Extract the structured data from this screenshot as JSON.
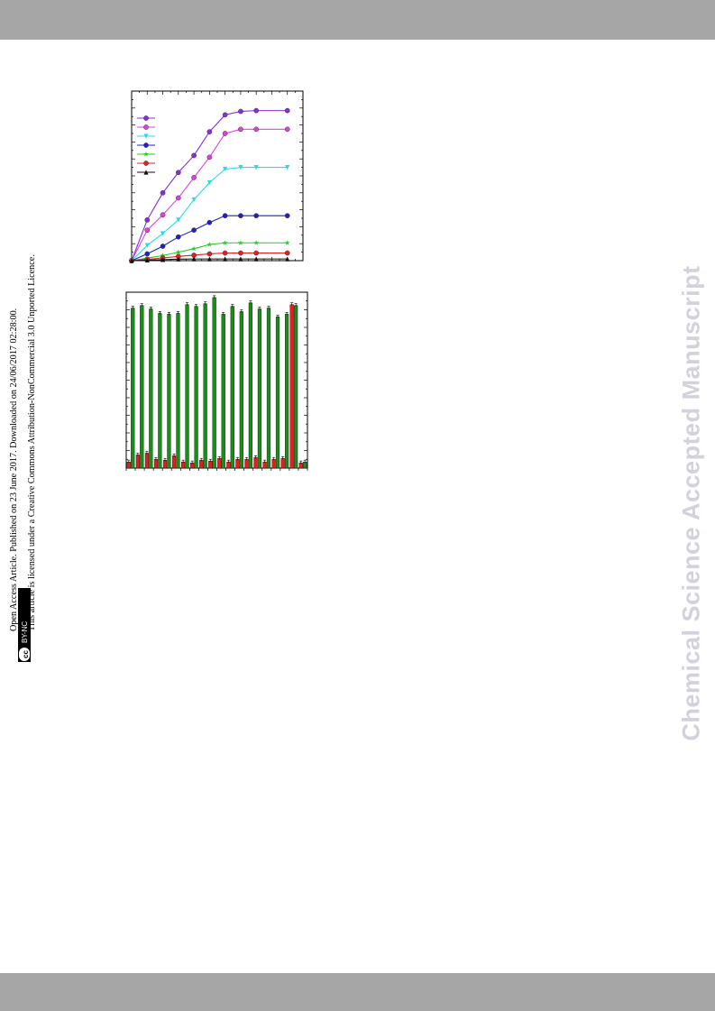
{
  "watermark": "Chemical Science Accepted Manuscript",
  "article_info": {
    "line1": "Open Access Article. Published on 23 June 2017. Downloaded on 24/06/2017 02:28:00.",
    "line2": "This article is licensed under a Creative Commons Attribution-NonCommercial 3.0 Unported Licence.",
    "badge_symbol": "cc",
    "badge_label": "BY-NC"
  },
  "chart_data": [
    {
      "type": "line",
      "x": [
        0,
        1,
        2,
        3,
        4,
        5,
        6,
        7,
        8,
        10
      ],
      "ylim": [
        0,
        100
      ],
      "grid": false,
      "legend": "top-left",
      "series": [
        {
          "color": "#8a2be2",
          "marker": "circle",
          "values": [
            0,
            24,
            40,
            52,
            62,
            76,
            86,
            88,
            88.5,
            88.5
          ]
        },
        {
          "color": "#e040e0",
          "marker": "circle",
          "values": [
            0,
            18,
            27,
            37,
            49,
            61,
            75,
            77.5,
            77.5,
            77.5
          ]
        },
        {
          "color": "#22dde8",
          "marker": "triangle-down",
          "values": [
            0,
            9,
            16,
            24,
            36,
            46,
            54,
            55,
            55,
            55
          ]
        },
        {
          "color": "#1f1fcf",
          "marker": "circle",
          "values": [
            0,
            4,
            8.5,
            14,
            18,
            22.5,
            26.5,
            26.5,
            26.5,
            26.5
          ]
        },
        {
          "color": "#22cc22",
          "marker": "star",
          "values": [
            0,
            1.5,
            3,
            5,
            7,
            9.5,
            10.5,
            10.5,
            10.5,
            10.5
          ]
        },
        {
          "color": "#e02020",
          "marker": "circle",
          "values": [
            0,
            0.8,
            1.6,
            2.5,
            3.2,
            4,
            4.5,
            4.5,
            4.5,
            4.5
          ]
        },
        {
          "color": "#111111",
          "marker": "triangle-up",
          "values": [
            0,
            0.3,
            0.6,
            0.9,
            1,
            1,
            1,
            1,
            1,
            1
          ]
        }
      ]
    },
    {
      "type": "bar",
      "ylim": [
        0,
        100
      ],
      "grid": false,
      "series": [
        {
          "color": "#e02020",
          "values": [
            3.5,
            7.5,
            8.5,
            5,
            4.5,
            7,
            3.5,
            3,
            4.5,
            4,
            5.5,
            3.5,
            5,
            5,
            6,
            3.5,
            5,
            5.5,
            93,
            3
          ]
        },
        {
          "color": "#1e8a1e",
          "values": [
            91,
            92.5,
            90.5,
            88,
            87.5,
            88,
            93,
            92,
            93.5,
            97,
            87.5,
            92,
            89,
            94,
            90.5,
            91,
            86,
            87.5,
            92.5,
            3.5
          ]
        }
      ]
    }
  ]
}
